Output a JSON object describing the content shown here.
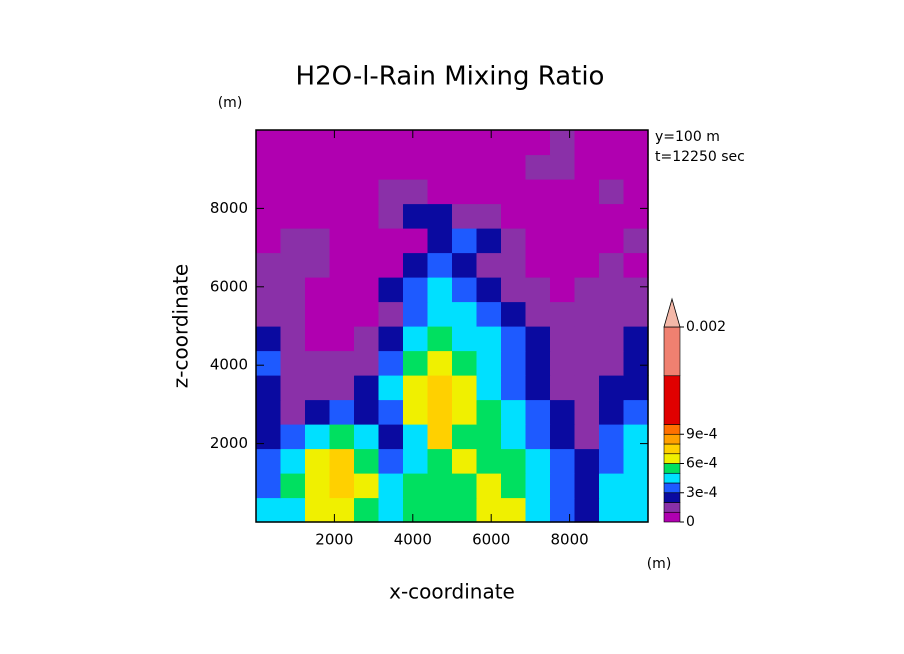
{
  "chart_data": {
    "type": "contour",
    "title": "H2O-l-Rain Mixing Ratio",
    "x_label": "x-coordinate",
    "y_label": "z-coordinate",
    "x_unit": "(m)",
    "y_unit": "(m)",
    "annotations": [
      "y=100 m",
      "t=12250 sec"
    ],
    "xlim": [
      0,
      10000
    ],
    "ylim": [
      0,
      10000
    ],
    "xticks": [
      2000,
      4000,
      6000,
      8000
    ],
    "yticks": [
      2000,
      4000,
      6000,
      8000
    ],
    "x": [
      312.5,
      937.5,
      1562.5,
      2187.5,
      2812.5,
      3437.5,
      4062.5,
      4687.5,
      5312.5,
      5937.5,
      6562.5,
      7187.5,
      7812.5,
      8437.5,
      9062.5,
      9687.5
    ],
    "y": [
      312.5,
      937.5,
      1562.5,
      2187.5,
      2812.5,
      3437.5,
      4062.5,
      4687.5,
      5312.5,
      5937.5,
      6562.5,
      7187.5,
      7812.5,
      8437.5,
      9062.5,
      9687.5
    ],
    "z": [
      [
        0.00045,
        0.00045,
        0.00065,
        0.00065,
        0.00055,
        0.00045,
        0.00055,
        0.00055,
        0.00055,
        0.00065,
        0.00065,
        0.00045,
        0.00035,
        0.00025,
        0.00045,
        0.00045
      ],
      [
        0.00035,
        0.00055,
        0.00065,
        0.00075,
        0.00065,
        0.00045,
        0.00055,
        0.00055,
        0.00055,
        0.00065,
        0.00055,
        0.00045,
        0.00035,
        0.00025,
        0.00045,
        0.00045
      ],
      [
        0.00035,
        0.00045,
        0.00065,
        0.00075,
        0.00055,
        0.00035,
        0.00045,
        0.00055,
        0.00065,
        0.00055,
        0.00055,
        0.00045,
        0.00035,
        0.00025,
        0.00035,
        0.00045
      ],
      [
        0.00025,
        0.00035,
        0.00045,
        0.00055,
        0.00045,
        0.00025,
        0.00045,
        0.00075,
        0.00055,
        0.00055,
        0.00045,
        0.00035,
        0.00025,
        0.00015,
        0.00035,
        0.00045
      ],
      [
        0.00025,
        0.00015,
        0.00025,
        0.00035,
        0.00025,
        0.00035,
        0.00065,
        0.00075,
        0.00065,
        0.00055,
        0.00045,
        0.00035,
        0.00025,
        0.00015,
        0.00025,
        0.00035
      ],
      [
        0.00025,
        0.00015,
        0.00015,
        0.00015,
        0.00025,
        0.00045,
        0.00065,
        0.00075,
        0.00065,
        0.00045,
        0.00035,
        0.00025,
        0.00015,
        0.00015,
        0.00025,
        0.00025
      ],
      [
        0.00035,
        0.00015,
        0.00015,
        0.00015,
        0.00015,
        0.00035,
        0.00055,
        0.00065,
        0.00055,
        0.00045,
        0.00035,
        0.00025,
        0.00015,
        0.00015,
        0.00015,
        0.00025
      ],
      [
        0.00025,
        0.00015,
        5e-05,
        5e-05,
        0.00015,
        0.00025,
        0.00045,
        0.00055,
        0.00045,
        0.00045,
        0.00035,
        0.00025,
        0.00015,
        0.00015,
        0.00015,
        0.00025
      ],
      [
        0.00015,
        0.00015,
        5e-05,
        5e-05,
        5e-05,
        0.00015,
        0.00035,
        0.00045,
        0.00045,
        0.00035,
        0.00025,
        0.00015,
        0.00015,
        0.00015,
        0.00015,
        0.00015
      ],
      [
        0.00015,
        0.00015,
        5e-05,
        5e-05,
        5e-05,
        0.00025,
        0.00035,
        0.00045,
        0.00035,
        0.00025,
        0.00015,
        0.00015,
        5e-05,
        0.00015,
        0.00015,
        0.00015
      ],
      [
        0.00015,
        0.00015,
        0.00015,
        5e-05,
        5e-05,
        5e-05,
        0.00025,
        0.00035,
        0.00025,
        0.00015,
        0.00015,
        5e-05,
        5e-05,
        5e-05,
        0.00015,
        5e-05
      ],
      [
        5e-05,
        0.00015,
        0.00015,
        5e-05,
        5e-05,
        5e-05,
        5e-05,
        0.00025,
        0.00035,
        0.00025,
        0.00015,
        5e-05,
        5e-05,
        5e-05,
        5e-05,
        0.00015
      ],
      [
        5e-05,
        5e-05,
        5e-05,
        5e-05,
        5e-05,
        0.00015,
        0.00025,
        0.00025,
        0.00015,
        0.00015,
        5e-05,
        5e-05,
        5e-05,
        5e-05,
        5e-05,
        5e-05
      ],
      [
        5e-05,
        5e-05,
        5e-05,
        5e-05,
        5e-05,
        0.00015,
        0.00015,
        5e-05,
        5e-05,
        5e-05,
        5e-05,
        5e-05,
        5e-05,
        5e-05,
        0.00015,
        5e-05
      ],
      [
        5e-05,
        5e-05,
        5e-05,
        5e-05,
        5e-05,
        5e-05,
        5e-05,
        5e-05,
        5e-05,
        5e-05,
        5e-05,
        0.00015,
        0.00015,
        5e-05,
        5e-05,
        5e-05
      ],
      [
        5e-05,
        5e-05,
        5e-05,
        5e-05,
        5e-05,
        5e-05,
        5e-05,
        5e-05,
        5e-05,
        5e-05,
        5e-05,
        5e-05,
        0.00015,
        5e-05,
        5e-05,
        5e-05
      ]
    ],
    "levels": [
      0,
      0.0001,
      0.0002,
      0.0003,
      0.0004,
      0.0005,
      0.0006,
      0.0007,
      0.0008,
      0.0009,
      0.001,
      0.0015,
      0.002
    ],
    "colors": [
      "#b000b0",
      "#8a30a8",
      "#0a0aa0",
      "#1e5aff",
      "#00e0ff",
      "#00e060",
      "#f0f000",
      "#ffd000",
      "#ffa000",
      "#ff7000",
      "#e00000",
      "#f08070"
    ],
    "over_color": "#f4b8a8",
    "colorbar_ticks": [
      0,
      {
        "value": 0.0003,
        "label": "3e-4"
      },
      {
        "value": 0.0006,
        "label": "6e-4"
      },
      {
        "value": 0.0009,
        "label": "9e-4"
      },
      0.002
    ]
  }
}
